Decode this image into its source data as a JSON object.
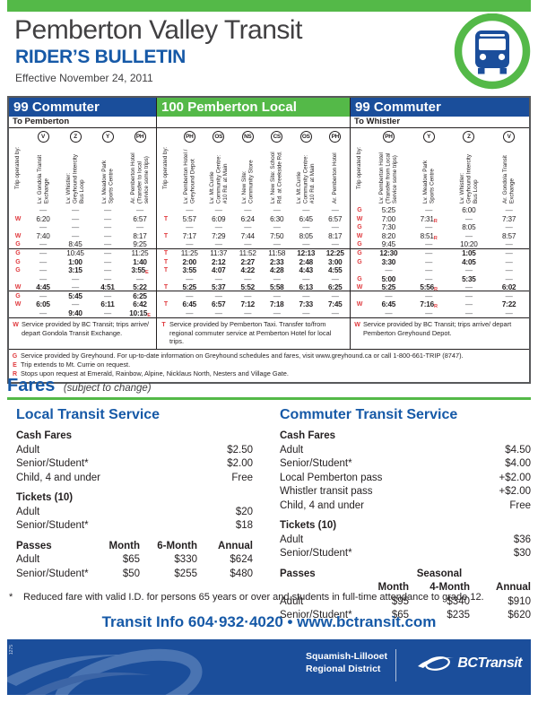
{
  "header": {
    "title": "Pemberton Valley Transit",
    "subtitle": "RIDER’S BULLETIN",
    "effective": "Effective November 24, 2011"
  },
  "schedule": {
    "group_breaks": [
      5,
      10
    ],
    "sections": [
      {
        "route": "99 Commuter",
        "direction": "To Pemberton",
        "color": "blue",
        "operated_label": "Trip operated by:",
        "stops": [
          {
            "code": "V",
            "label": "Lv. Gondola Transit Exchange"
          },
          {
            "code": "Z",
            "label": "Lv. Whistler: Greyhound Intercity Bus Loop"
          },
          {
            "code": "Y",
            "label": "Lv. Meadow Park Sports Centre"
          },
          {
            "code": "PH",
            "label": "Ar. Pemberton Hotel (Transfer to local service some trips)"
          }
        ],
        "rows": [
          {
            "op": "",
            "times": [
              "—",
              "—",
              "—",
              "—"
            ]
          },
          {
            "op": "W",
            "times": [
              "6:20",
              "—",
              "—",
              "6:57"
            ]
          },
          {
            "op": "",
            "times": [
              "—",
              "—",
              "—",
              "—"
            ]
          },
          {
            "op": "W",
            "times": [
              "7:40",
              "—",
              "—",
              "8:17"
            ]
          },
          {
            "op": "G",
            "times": [
              "—",
              "8:45",
              "—",
              "9:25"
            ]
          },
          {
            "op": "G",
            "times": [
              "—",
              "10:45",
              "—",
              "11:25"
            ]
          },
          {
            "op": "G",
            "times": [
              "—",
              "*1:00",
              "—",
              "*1:40"
            ]
          },
          {
            "op": "G",
            "times": [
              "—",
              "*3:15",
              "—",
              "*3:55^E"
            ]
          },
          {
            "op": "",
            "times": [
              "—",
              "—",
              "—",
              "—"
            ]
          },
          {
            "op": "W",
            "times": [
              "*4:45",
              "—",
              "*4:51",
              "*5:22"
            ]
          },
          {
            "op": "G",
            "times": [
              "—",
              "*5:45",
              "—",
              "*6:25"
            ]
          },
          {
            "op": "W",
            "times": [
              "*6:05",
              "—",
              "*6:11",
              "*6:42"
            ]
          },
          {
            "op": "",
            "times": [
              "—",
              "*9:40",
              "—",
              "*10:15^E"
            ]
          }
        ],
        "footnote": {
          "code": "W",
          "text": "Service provided by BC Transit; trips arrive/ depart Gondola Transit Exchange."
        }
      },
      {
        "route": "100 Pemberton Local",
        "direction": "",
        "color": "green",
        "operated_label": "Trip operated by:",
        "stops": [
          {
            "code": "PH",
            "label": "Lv. Pemberton Hotel / Greyhound Depot"
          },
          {
            "code": "OS",
            "label": "Lv. Mt.Currie Community Centre: #10 Rd. at Main"
          },
          {
            "code": "NS",
            "label": "Lv. New Site: Community Store"
          },
          {
            "code": "CS",
            "label": "Lv. New Site: School Rd. at Creekside Rd."
          },
          {
            "code": "OS",
            "label": "Lv. Mt.Currie Community Centre: #10 Rd. at Main"
          },
          {
            "code": "PH",
            "label": "Ar. Pemberton Hotel"
          }
        ],
        "rows": [
          {
            "op": "",
            "times": [
              "—",
              "—",
              "—",
              "—",
              "—",
              "—"
            ]
          },
          {
            "op": "T",
            "times": [
              "5:57",
              "6:09",
              "6:24",
              "6:30",
              "6:45",
              "6:57"
            ]
          },
          {
            "op": "",
            "times": [
              "—",
              "—",
              "—",
              "—",
              "—",
              "—"
            ]
          },
          {
            "op": "T",
            "times": [
              "7:17",
              "7:29",
              "7:44",
              "7:50",
              "8:05",
              "8:17"
            ]
          },
          {
            "op": "",
            "times": [
              "—",
              "—",
              "—",
              "—",
              "—",
              "—"
            ]
          },
          {
            "op": "T",
            "times": [
              "11:25",
              "11:37",
              "11:52",
              "11:58",
              "*12:13",
              "*12:25"
            ]
          },
          {
            "op": "T",
            "times": [
              "*2:00",
              "*2:12",
              "*2:27",
              "*2:33",
              "*2:48",
              "*3:00"
            ]
          },
          {
            "op": "T",
            "times": [
              "*3:55",
              "*4:07",
              "*4:22",
              "*4:28",
              "*4:43",
              "*4:55"
            ]
          },
          {
            "op": "",
            "times": [
              "—",
              "—",
              "—",
              "—",
              "—",
              "—"
            ]
          },
          {
            "op": "T",
            "times": [
              "*5:25",
              "*5:37",
              "*5:52",
              "*5:58",
              "*6:13",
              "*6:25"
            ]
          },
          {
            "op": "",
            "times": [
              "—",
              "—",
              "—",
              "—",
              "—",
              "—"
            ]
          },
          {
            "op": "T",
            "times": [
              "*6:45",
              "*6:57",
              "*7:12",
              "*7:18",
              "*7:33",
              "*7:45"
            ]
          },
          {
            "op": "",
            "times": [
              "—",
              "—",
              "—",
              "—",
              "—",
              "—"
            ]
          }
        ],
        "footnote": {
          "code": "T",
          "text": "Service provided by Pemberton Taxi. Transfer to/from regional commuter service at Pemberton Hotel for local trips."
        }
      },
      {
        "route": "99 Commuter",
        "direction": "To Whistler",
        "color": "blue",
        "operated_label": "Trip operated by:",
        "stops": [
          {
            "code": "PH",
            "label": "Lv. Pemberton Hotel (Transfer from Local Service some trips)"
          },
          {
            "code": "Y",
            "label": "Lv. Meadow Park Sports Centre"
          },
          {
            "code": "Z",
            "label": "Lv. Whistler: Greyhound Intercity Bus Loop"
          },
          {
            "code": "V",
            "label": "Ar. Gondola Transit Exchange"
          }
        ],
        "rows": [
          {
            "op": "G",
            "times": [
              "5:25",
              "—",
              "6:00",
              "—"
            ]
          },
          {
            "op": "W",
            "times": [
              "7:00",
              "7:31^R",
              "—",
              "7:37"
            ]
          },
          {
            "op": "G",
            "times": [
              "7:30",
              "—",
              "8:05",
              "—"
            ]
          },
          {
            "op": "W",
            "times": [
              "8:20",
              "8:51^R",
              "—",
              "8:57"
            ]
          },
          {
            "op": "G",
            "times": [
              "9:45",
              "—",
              "10:20",
              "—"
            ]
          },
          {
            "op": "G",
            "times": [
              "*12:30",
              "—",
              "*1:05",
              "—"
            ]
          },
          {
            "op": "G",
            "times": [
              "*3:30",
              "—",
              "*4:05",
              "—"
            ]
          },
          {
            "op": "",
            "times": [
              "—",
              "—",
              "—",
              "—"
            ]
          },
          {
            "op": "G",
            "times": [
              "*5:00",
              "—",
              "*5:35",
              "—"
            ]
          },
          {
            "op": "W",
            "times": [
              "*5:25",
              "*5:56^R",
              "—",
              "*6:02"
            ]
          },
          {
            "op": "",
            "times": [
              "—",
              "—",
              "—",
              "—"
            ]
          },
          {
            "op": "W",
            "times": [
              "*6:45",
              "*7:16^R",
              "—",
              "*7:22"
            ]
          },
          {
            "op": "",
            "times": [
              "—",
              "—",
              "—",
              "—"
            ]
          }
        ],
        "footnote": {
          "code": "W",
          "text": "Service provided by BC Transit; trips arrive/ depart Pemberton Greyhound Depot."
        }
      }
    ],
    "notes": [
      {
        "code": "G",
        "text": "Service provided by Greyhound. For up-to-date information on Greyhound schedules and fares, visit www.greyhound.ca or call 1-800-661-TRIP (8747)."
      },
      {
        "code": "E",
        "text": "Trip extends to Mt. Currie on request."
      },
      {
        "code": "R",
        "text": "Stops upon request at Emerald, Rainbow, Alpine, Nicklaus North, Nesters and Village Gate."
      }
    ]
  },
  "fares": {
    "heading": "Fares",
    "heading_note": "(subject to change)",
    "note_star": "*",
    "note": "Reduced fare with valid I.D. for persons 65 years or over and students in full-time attendance to grade 12.",
    "columns": [
      {
        "title": "Local Transit Service",
        "groups": [
          {
            "header": "Cash Fares",
            "rows": [
              [
                "Adult",
                "$2.50"
              ],
              [
                "Senior/Student*",
                "$2.00"
              ],
              [
                "Child, 4 and under",
                "Free"
              ]
            ]
          },
          {
            "header": "Tickets (10)",
            "rows": [
              [
                "Adult",
                "$20"
              ],
              [
                "Senior/Student*",
                "$18"
              ]
            ]
          },
          {
            "header": "Passes",
            "type": "passes",
            "col_headers": [
              "Month",
              "6-Month",
              "Annual"
            ],
            "rows": [
              [
                "Adult",
                "$65",
                "$330",
                "$624"
              ],
              [
                "Senior/Student*",
                "$50",
                "$255",
                "$480"
              ]
            ]
          }
        ]
      },
      {
        "title": "Commuter Transit Service",
        "groups": [
          {
            "header": "Cash Fares",
            "rows": [
              [
                "Adult",
                "$4.50"
              ],
              [
                "Senior/Student*",
                "$4.00"
              ],
              [
                "Local Pemberton pass",
                "+$2.00"
              ],
              [
                "Whistler transit pass",
                "+$2.00"
              ],
              [
                "Child, 4 and under",
                "Free"
              ]
            ]
          },
          {
            "header": "Tickets (10)",
            "rows": [
              [
                "Adult",
                "$36"
              ],
              [
                "Senior/Student*",
                "$30"
              ]
            ]
          },
          {
            "header": "Passes",
            "type": "passes",
            "col_super": "Seasonal",
            "col_headers": [
              "Month",
              "4-Month",
              "Annual"
            ],
            "rows": [
              [
                "Adult",
                "$95",
                "$340",
                "$910"
              ],
              [
                "Senior/Student*",
                "$65",
                "$235",
                "$620"
              ]
            ]
          }
        ]
      }
    ]
  },
  "footer": {
    "transit_info": "Transit Info 604·932·4020 • www.bctransit.com",
    "district_line1": "Squamish-Lillooet",
    "district_line2": "Regional District",
    "brand": "BCTransit",
    "doc_number": "1275"
  },
  "colors": {
    "green": "#54b948",
    "blue": "#1b4e9b",
    "red": "#e03a3e"
  }
}
